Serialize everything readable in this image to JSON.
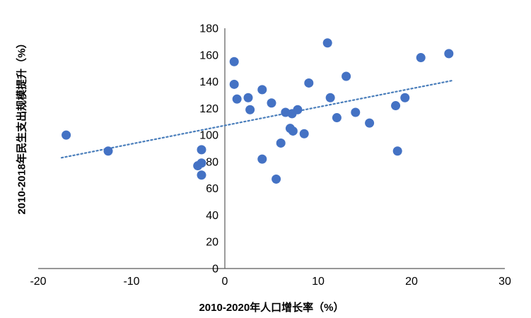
{
  "chart_data": {
    "type": "scatter",
    "title": "",
    "xlabel": "2010-2020年人口增长率（%）",
    "ylabel": "2010-2018年民生支出规模提升（%）",
    "xlim": [
      -20,
      30
    ],
    "ylim": [
      0,
      180
    ],
    "x_ticks": [
      -20,
      -10,
      0,
      10,
      20,
      30
    ],
    "y_ticks": [
      0,
      20,
      40,
      60,
      80,
      100,
      120,
      140,
      160,
      180
    ],
    "grid": false,
    "legend": "none",
    "marker_color": "#4472C4",
    "marker_radius": 6.5,
    "axis_color": "#595959",
    "tick_font_size": 16,
    "trendline": {
      "style": "dotted",
      "color": "#4A7EBB",
      "x1": -17.5,
      "y1": 83,
      "x2": 24.5,
      "y2": 141
    },
    "points": [
      [
        -17,
        100
      ],
      [
        -12.5,
        88
      ],
      [
        -2.5,
        89
      ],
      [
        -2.5,
        79
      ],
      [
        -2.9,
        77
      ],
      [
        -2.5,
        70
      ],
      [
        1,
        155
      ],
      [
        1,
        138
      ],
      [
        1.3,
        127
      ],
      [
        2.5,
        128
      ],
      [
        2.7,
        119
      ],
      [
        4,
        134
      ],
      [
        4,
        82
      ],
      [
        5,
        124
      ],
      [
        5.5,
        67
      ],
      [
        6,
        94
      ],
      [
        6.5,
        117
      ],
      [
        7.2,
        116
      ],
      [
        7.8,
        119
      ],
      [
        7,
        105
      ],
      [
        7.3,
        103
      ],
      [
        8.5,
        101
      ],
      [
        9,
        139
      ],
      [
        11,
        169
      ],
      [
        11.3,
        128
      ],
      [
        12,
        113
      ],
      [
        13,
        144
      ],
      [
        14,
        117
      ],
      [
        15.5,
        109
      ],
      [
        18.3,
        122
      ],
      [
        18.5,
        88
      ],
      [
        19.3,
        128
      ],
      [
        21,
        158
      ],
      [
        24,
        161
      ]
    ]
  }
}
